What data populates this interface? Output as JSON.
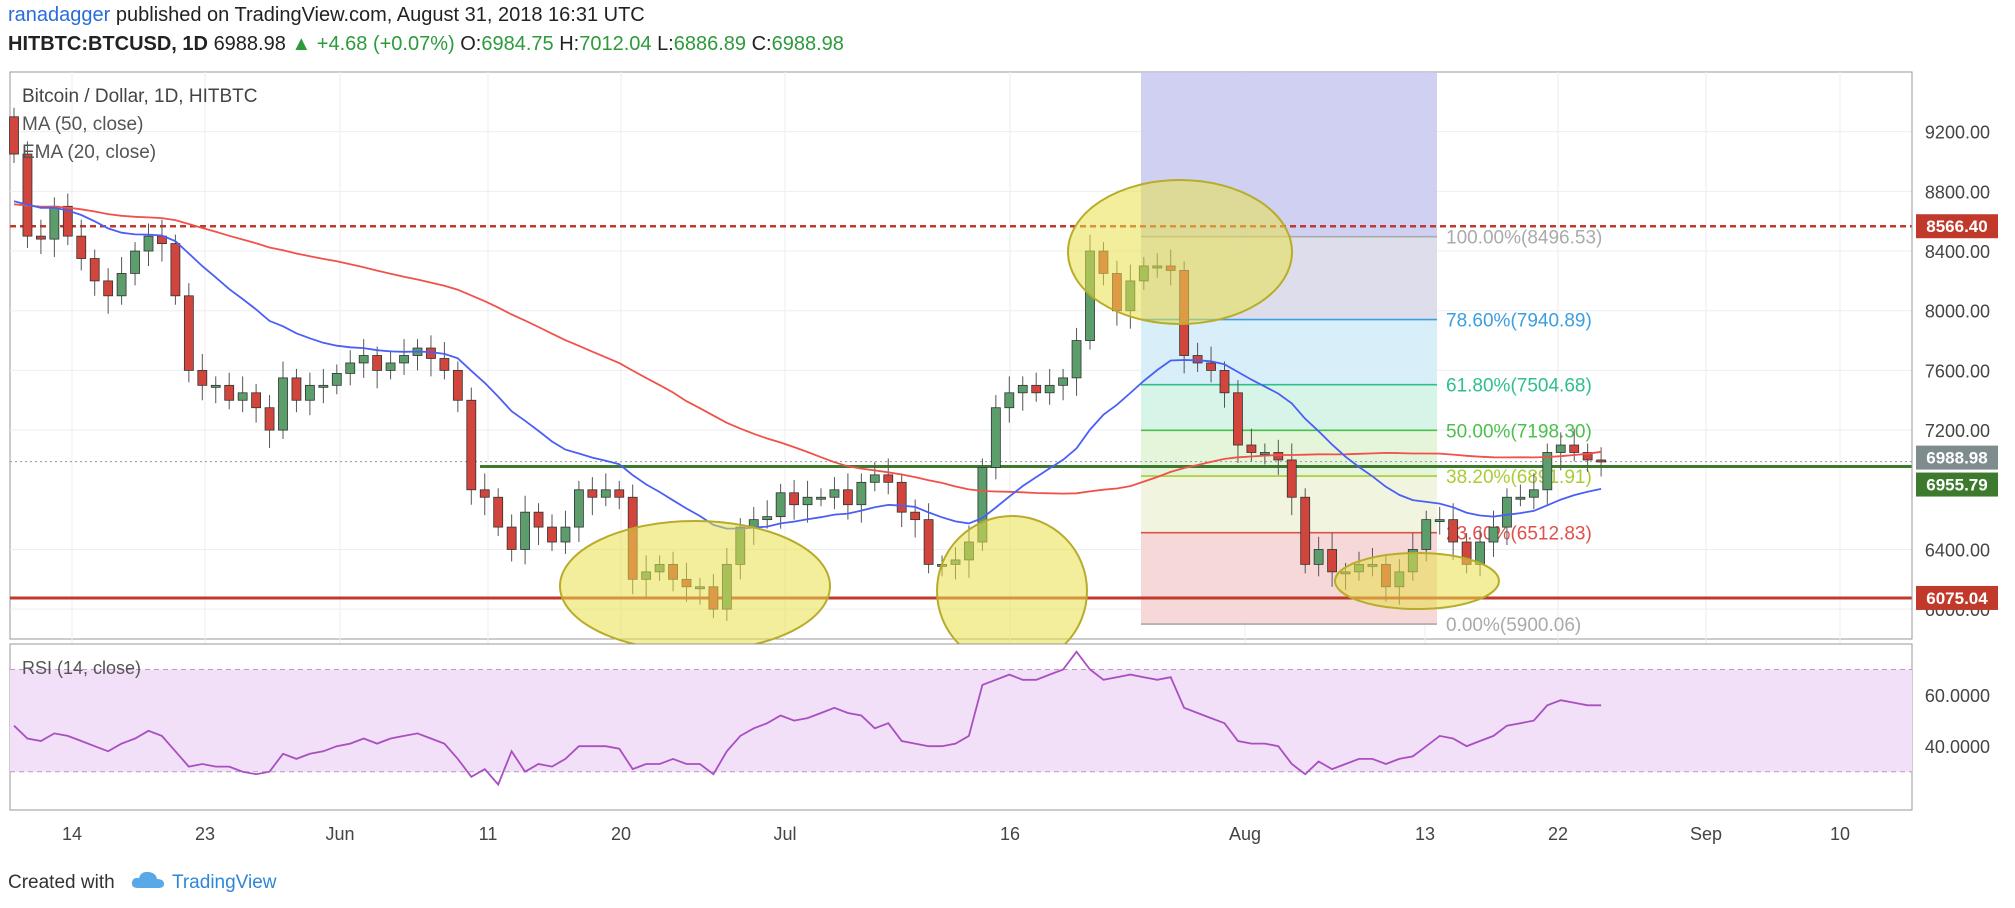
{
  "header": {
    "author": "ranadagger",
    "published": "published on TradingView.com, August 31, 2018 16:31 UTC",
    "symbol": "HITBTC:BTCUSD, 1D",
    "last": "6988.98",
    "change": "+4.68 (+0.07%)",
    "o_label": "O:",
    "o": "6984.75",
    "h_label": "H:",
    "h": "7012.04",
    "l_label": "L:",
    "l": "6886.89",
    "c_label": "C:",
    "c": "6988.98"
  },
  "footer": {
    "created": "Created with",
    "brand": "TradingView"
  },
  "colors": {
    "up": "#5b9d6b",
    "down": "#d2453c",
    "ma50": "#f0524a",
    "ema20": "#4a5ff5",
    "rsi": "#a94fc2",
    "support": "#c0392b",
    "resistance": "#c0392b",
    "highlight": "#e8e04a"
  },
  "chart_data": [
    {
      "type": "candlestick",
      "title": "Bitcoin / Dollar, 1D, HITBTC",
      "indicators": [
        "MA (50, close)",
        "EMA (20, close)"
      ],
      "x_ticks": [
        "14",
        "23",
        "Jun",
        "11",
        "20",
        "Jul",
        "16",
        "Aug",
        "13",
        "22",
        "Sep",
        "10"
      ],
      "y_ticks": [
        "9200.00",
        "8800.00",
        "8400.00",
        "8000.00",
        "7600.00",
        "7200.00",
        "6400.00",
        "6000.00"
      ],
      "ylim": [
        5800,
        9600
      ],
      "price_labels": [
        {
          "value": 8566.4,
          "text": "8566.40",
          "color": "#c0392b"
        },
        {
          "value": 6988.98,
          "text": "6988.98",
          "color": "#7f8c8d"
        },
        {
          "value": 6955.79,
          "text": "6955.79",
          "color": "#3d7a2e"
        },
        {
          "value": 6075.04,
          "text": "6075.04",
          "color": "#c0392b"
        }
      ],
      "resistance": 8566.4,
      "support": 6075.04,
      "green_line": 6955.79,
      "fibonacci": [
        {
          "label": "100.00%(8496.53)",
          "value": 8496.53,
          "color": "#aaaaaa"
        },
        {
          "label": "78.60%(7940.89)",
          "value": 7940.89,
          "color": "#3c9ee0"
        },
        {
          "label": "61.80%(7504.68)",
          "value": 7504.68,
          "color": "#2ebf8a"
        },
        {
          "label": "50.00%(7198.30)",
          "value": 7198.3,
          "color": "#4cc04c"
        },
        {
          "label": "38.20%(6891.91)",
          "value": 6891.91,
          "color": "#aacc33"
        },
        {
          "label": "23.60%(6512.83)",
          "value": 6512.83,
          "color": "#e0504a"
        },
        {
          "label": "0.00%(5900.06)",
          "value": 5900.06,
          "color": "#aaaaaa"
        }
      ],
      "closes": [
        9050,
        8500,
        8480,
        8700,
        8500,
        8350,
        8200,
        8100,
        8250,
        8400,
        8500,
        8450,
        8100,
        7600,
        7500,
        7500,
        7400,
        7450,
        7350,
        7200,
        7550,
        7400,
        7500,
        7500,
        7580,
        7650,
        7700,
        7600,
        7650,
        7700,
        7750,
        7680,
        7600,
        7400,
        6800,
        6750,
        6550,
        6400,
        6650,
        6550,
        6450,
        6550,
        6800,
        6750,
        6800,
        6750,
        6200,
        6250,
        6300,
        6200,
        6150,
        6150,
        6000,
        6300,
        6550,
        6600,
        6620,
        6780,
        6700,
        6750,
        6750,
        6800,
        6700,
        6850,
        6900,
        6850,
        6650,
        6600,
        6300,
        6300,
        6330,
        6450,
        6950,
        7350,
        7450,
        7500,
        7450,
        7500,
        7550,
        7800,
        8400,
        8250,
        8000,
        8200,
        8300,
        8300,
        8270,
        7700,
        7650,
        7600,
        7450,
        7100,
        7050,
        7050,
        7000,
        6750,
        6300,
        6400,
        6250,
        6250,
        6300,
        6300,
        6150,
        6250,
        6400,
        6600,
        6600,
        6450,
        6300,
        6450,
        6550,
        6750,
        6750,
        6800,
        7050,
        7100,
        7050,
        7000,
        6989
      ],
      "rsi": {
        "label": "RSI (14, close)",
        "y_ticks": [
          "60.0000",
          "40.0000"
        ],
        "ylim": [
          15,
          80
        ],
        "values": [
          48,
          43,
          42,
          45,
          44,
          42,
          40,
          38,
          41,
          43,
          46,
          44,
          38,
          32,
          33,
          32,
          32,
          30,
          29,
          30,
          37,
          35,
          37,
          38,
          40,
          41,
          43,
          41,
          43,
          44,
          45,
          43,
          41,
          35,
          28,
          31,
          25,
          38,
          30,
          33,
          32,
          35,
          40,
          40,
          40,
          39,
          31,
          33,
          33,
          35,
          33,
          33,
          29,
          38,
          44,
          47,
          49,
          52,
          50,
          51,
          53,
          55,
          53,
          52,
          47,
          49,
          42,
          41,
          40,
          40,
          41,
          44,
          64,
          66,
          68,
          66,
          66,
          68,
          70,
          77,
          70,
          66,
          67,
          68,
          67,
          66,
          67,
          55,
          53,
          51,
          49,
          42,
          41,
          41,
          40,
          33,
          29,
          34,
          31,
          33,
          35,
          35,
          33,
          35,
          36,
          40,
          44,
          43,
          40,
          42,
          44,
          48,
          49,
          50,
          56,
          58,
          57,
          56,
          56
        ]
      }
    }
  ]
}
